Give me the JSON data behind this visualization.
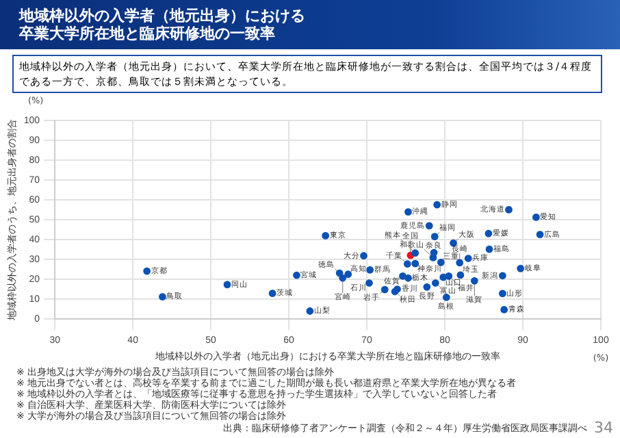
{
  "chart_data": {
    "type": "scatter",
    "title": "地域枠以外の入学者（地元出身）における卒業大学所在地と臨床研修地の一致率",
    "subtitle": "地域枠以外の入学者（地元出身）において、卒業大学所在地と臨床研修地が一致する割合は、全国平均では３/４程度である一方で、京都、鳥取では５割未満となっている。",
    "xlabel": "地域枠以外の入学者（地元出身）における卒業大学所在地と臨床研修地の一致率",
    "ylabel": "地域枠以外の入学者のうち、地元出身者の割合",
    "xlim": [
      30,
      100
    ],
    "xticks": [
      30,
      40,
      50,
      60,
      70,
      80,
      90,
      100
    ],
    "ylim": [
      0,
      100
    ],
    "yticks": [
      0,
      10,
      20,
      30,
      40,
      50,
      60,
      70,
      80,
      90,
      100
    ],
    "grid": true,
    "legend": false,
    "marker": "circle",
    "annotations": [
      "(%)",
      "(%)",
      "※ 出身地又は大学が海外の場合及び当該項目について無回答の場合は除外",
      "※ 地元出身でない者とは、高校等を卒業する前までに過ごした期間が最も長い都道府県と卒業大学所在地が異なる者",
      "※ 地域枠以外の入学者とは、「地域医療等に従事する意思を持った学生選抜枠」で入学していないと回答した者",
      "※ 自治医科大学、産業医科大学、防衛医科大学については除外",
      "※ 大学が海外の場合及び当該項目について無回答の場合は除外",
      "出典：臨床研修修了者アンケート調査（令和２～４年）厚生労働省医政局医事課調べ",
      "34"
    ],
    "series": [
      {
        "name": "北海道",
        "color": "#0b52b4",
        "x": [
          88.2
        ],
        "values": [
          55.1
        ]
      },
      {
        "name": "青森",
        "color": "#0b52b4",
        "x": [
          87.6
        ],
        "values": [
          4.8
        ]
      },
      {
        "name": "岩手",
        "color": "#0b52b4",
        "x": [
          72.3
        ],
        "values": [
          14.9
        ]
      },
      {
        "name": "宮城",
        "color": "#0b52b4",
        "x": [
          61.0
        ],
        "values": [
          22.1
        ]
      },
      {
        "name": "秋田",
        "color": "#0b52b4",
        "x": [
          73.6
        ],
        "values": [
          13.9
        ]
      },
      {
        "name": "山形",
        "color": "#0b52b4",
        "x": [
          87.4
        ],
        "values": [
          12.9
        ]
      },
      {
        "name": "福島",
        "color": "#0b52b4",
        "x": [
          85.7
        ],
        "values": [
          35.2
        ]
      },
      {
        "name": "茨城",
        "color": "#0b52b4",
        "x": [
          57.9
        ],
        "values": [
          13.0
        ]
      },
      {
        "name": "栃木",
        "color": "#0b52b4",
        "x": [
          75.3
        ],
        "values": [
          20.7
        ]
      },
      {
        "name": "群馬",
        "color": "#0b52b4",
        "x": [
          70.4
        ],
        "values": [
          24.8
        ]
      },
      {
        "name": "埼玉",
        "color": "#0b52b4",
        "x": [
          82.0
        ],
        "values": [
          22.2
        ]
      },
      {
        "name": "千葉",
        "color": "#0b52b4",
        "x": [
          75.2
        ],
        "values": [
          27.8
        ]
      },
      {
        "name": "東京",
        "color": "#0b52b4",
        "x": [
          64.7
        ],
        "values": [
          42.0
        ]
      },
      {
        "name": "神奈川",
        "color": "#0b52b4",
        "x": [
          76.2
        ],
        "values": [
          28.0
        ]
      },
      {
        "name": "新潟",
        "color": "#0b52b4",
        "x": [
          87.4
        ],
        "values": [
          21.9
        ]
      },
      {
        "name": "富山",
        "color": "#0b52b4",
        "x": [
          78.8
        ],
        "values": [
          18.2
        ]
      },
      {
        "name": "石川",
        "color": "#0b52b4",
        "x": [
          70.3
        ],
        "values": [
          18.2
        ]
      },
      {
        "name": "福井",
        "color": "#0b52b4",
        "x": [
          80.5
        ],
        "values": [
          21.7
        ]
      },
      {
        "name": "山梨",
        "color": "#0b52b4",
        "x": [
          62.7
        ],
        "values": [
          4.1
        ]
      },
      {
        "name": "長野",
        "color": "#0b52b4",
        "x": [
          77.7
        ],
        "values": [
          16.2
        ]
      },
      {
        "name": "岐阜",
        "color": "#0b52b4",
        "x": [
          89.7
        ],
        "values": [
          25.5
        ]
      },
      {
        "name": "静岡",
        "color": "#0b52b4",
        "x": [
          79.0
        ],
        "values": [
          57.6
        ]
      },
      {
        "name": "愛知",
        "color": "#0b52b4",
        "x": [
          91.7
        ],
        "values": [
          51.3
        ]
      },
      {
        "name": "三重",
        "color": "#0b52b4",
        "x": [
          79.5
        ],
        "values": [
          28.6
        ]
      },
      {
        "name": "滋賀",
        "color": "#0b52b4",
        "x": [
          83.8
        ],
        "values": [
          19.3
        ]
      },
      {
        "name": "京都",
        "color": "#0b52b4",
        "x": [
          41.8
        ],
        "values": [
          24.2
        ]
      },
      {
        "name": "大阪",
        "color": "#0b52b4",
        "x": [
          81.1
        ],
        "values": [
          38.3
        ]
      },
      {
        "name": "兵庫",
        "color": "#0b52b4",
        "x": [
          83.0
        ],
        "values": [
          30.6
        ]
      },
      {
        "name": "奈良",
        "color": "#0b52b4",
        "x": [
          78.6
        ],
        "values": [
          33.5
        ]
      },
      {
        "name": "和歌山",
        "color": "#0b52b4",
        "x": [
          78.5
        ],
        "values": [
          31.0
        ]
      },
      {
        "name": "鳥取",
        "color": "#0b52b4",
        "x": [
          43.8
        ],
        "values": [
          11.3
        ]
      },
      {
        "name": "島根",
        "color": "#0b52b4",
        "x": [
          80.2
        ],
        "values": [
          11.0
        ]
      },
      {
        "name": "岡山",
        "color": "#0b52b4",
        "x": [
          52.1
        ],
        "values": [
          17.4
        ]
      },
      {
        "name": "広島",
        "color": "#0b52b4",
        "x": [
          92.2
        ],
        "values": [
          42.6
        ]
      },
      {
        "name": "山口",
        "color": "#0b52b4",
        "x": [
          79.8
        ],
        "values": [
          21.1
        ]
      },
      {
        "name": "徳島",
        "color": "#0b52b4",
        "x": [
          66.5
        ],
        "values": [
          23.2
        ]
      },
      {
        "name": "香川",
        "color": "#0b52b4",
        "x": [
          73.9
        ],
        "values": [
          15.1
        ]
      },
      {
        "name": "愛媛",
        "color": "#0b52b4",
        "x": [
          85.6
        ],
        "values": [
          43.1
        ]
      },
      {
        "name": "高知",
        "color": "#0b52b4",
        "x": [
          67.6
        ],
        "values": [
          22.6
        ]
      },
      {
        "name": "福岡",
        "color": "#0b52b4",
        "x": [
          78.7
        ],
        "values": [
          41.6
        ]
      },
      {
        "name": "佐賀",
        "color": "#0b52b4",
        "x": [
          74.6
        ],
        "values": [
          21.7
        ]
      },
      {
        "name": "長崎",
        "color": "#0b52b4",
        "x": [
          81.9
        ],
        "values": [
          28.4
        ]
      },
      {
        "name": "熊本",
        "color": "#0b52b4",
        "x": [
          76.2
        ],
        "values": [
          33.3
        ]
      },
      {
        "name": "大分",
        "color": "#0b52b4",
        "x": [
          69.6
        ],
        "values": [
          31.9
        ]
      },
      {
        "name": "宮崎",
        "color": "#0b52b4",
        "x": [
          66.9
        ],
        "values": [
          20.7
        ]
      },
      {
        "name": "鹿児島",
        "color": "#0b52b4",
        "x": [
          78.0
        ],
        "values": [
          47.0
        ]
      },
      {
        "name": "沖縄",
        "color": "#0b52b4",
        "x": [
          75.3
        ],
        "values": [
          54.0
        ]
      },
      {
        "name": "全国",
        "color": "#e8141e",
        "x": [
          75.6
        ],
        "values": [
          32.1
        ]
      }
    ]
  }
}
